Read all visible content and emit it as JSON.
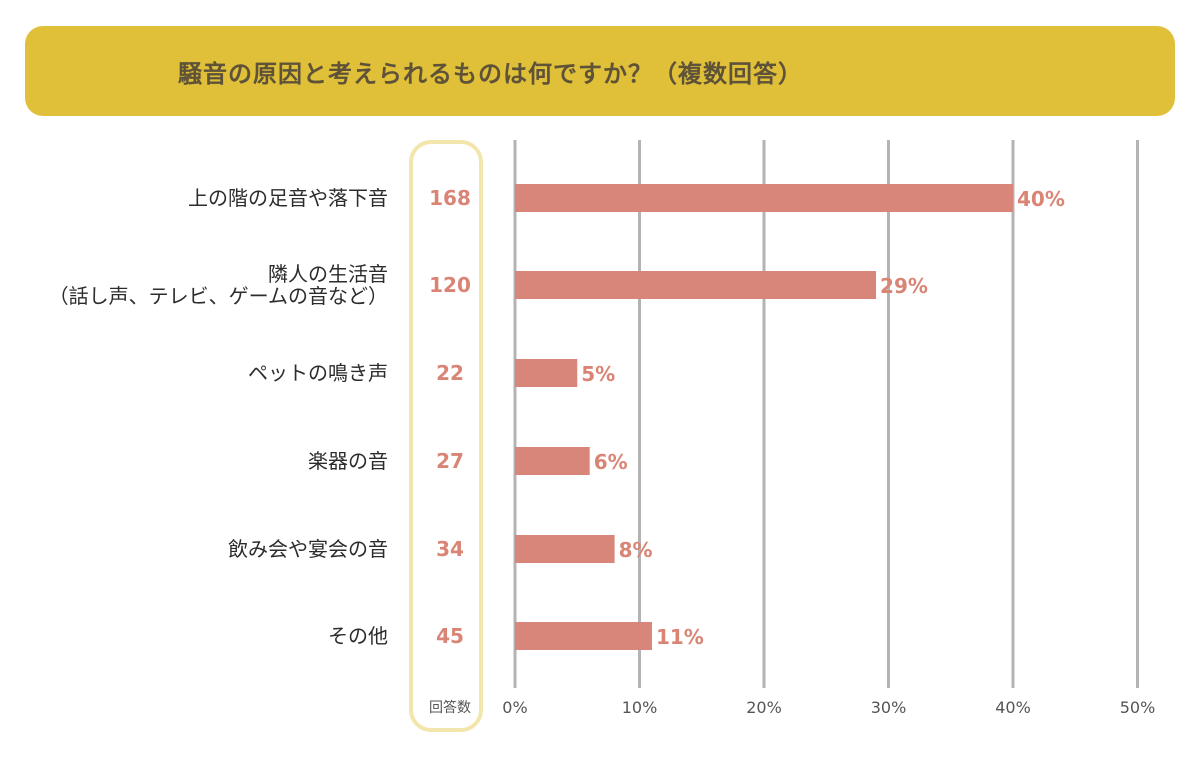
{
  "title": "騒音の原因と考えられるものは何ですか？（複数回答）",
  "count_header": "回答数",
  "rows": [
    {
      "label_lines": [
        "上の階の足音や落下音"
      ],
      "count": "168"
    },
    {
      "label_lines": [
        "隣人の生活音",
        "（話し声、テレビ、ゲームの音など）"
      ],
      "count": "120"
    },
    {
      "label_lines": [
        "ペットの鳴き声"
      ],
      "count": "22"
    },
    {
      "label_lines": [
        "楽器の音"
      ],
      "count": "27"
    },
    {
      "label_lines": [
        "飲み会や宴会の音"
      ],
      "count": "34"
    },
    {
      "label_lines": [
        "その他"
      ],
      "count": "45"
    }
  ],
  "chart_data": {
    "type": "bar",
    "orientation": "horizontal",
    "categories": [
      "上の階の足音や落下音",
      "隣人の生活音（話し声、テレビ、ゲームの音など）",
      "ペットの鳴き声",
      "楽器の音",
      "飲み会や宴会の音",
      "その他"
    ],
    "values": [
      40,
      29,
      5,
      6,
      8,
      11
    ],
    "value_labels": [
      "40%",
      "29%",
      "5%",
      "6%",
      "8%",
      "11%"
    ],
    "xlim": [
      0,
      50
    ],
    "x_ticks": [
      0,
      10,
      20,
      30,
      40,
      50
    ],
    "x_tick_labels": [
      "0%",
      "10%",
      "20%",
      "30%",
      "40%",
      "50%"
    ],
    "grid": "vertical",
    "bar_color": "#d9867a",
    "grid_color": "#b3b3b3"
  },
  "colors": {
    "banner": "#e0bf39",
    "title_text": "#5e5238",
    "count_text": "#d98475",
    "count_box_border": "#f3e6ad"
  }
}
